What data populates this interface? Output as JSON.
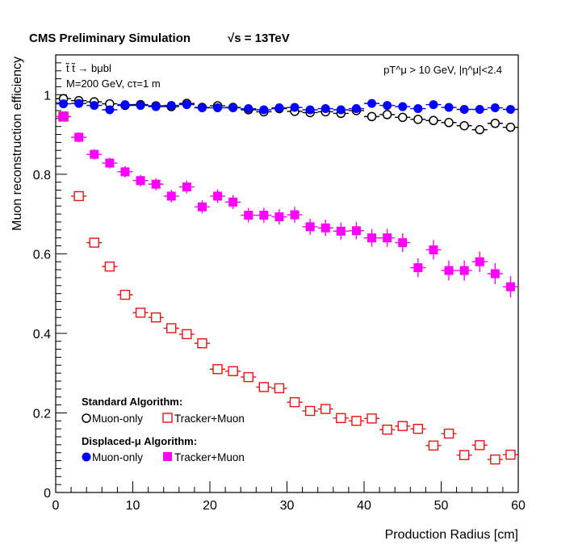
{
  "chart_data": {
    "type": "scatter",
    "title": "CMS Preliminary Simulation",
    "title_energy": "√s = 13TeV",
    "xlabel": "Production Radius [cm]",
    "ylabel": "Muon reconstruction efficiency",
    "xlim": [
      0,
      60
    ],
    "ylim": [
      0,
      1.1
    ],
    "xticks": [
      0,
      10,
      20,
      30,
      40,
      50,
      60
    ],
    "yticks": [
      0,
      0.2,
      0.4,
      0.6,
      0.8,
      1
    ],
    "ytick_labels": [
      "0",
      "0.2",
      "0.4",
      "0.6",
      "0.8",
      "1"
    ],
    "annotations": {
      "process": "t̃ t̃ → bμbl",
      "params": "M=200 GeV, cτ=1 m",
      "cuts": "pT^μ > 10 GeV, |η^μ|<2.4"
    },
    "legend": {
      "position": "bottom-left",
      "standard_header": "Standard Algorithm:",
      "displaced_header": "Displaced-μ Algorithm:",
      "muon_only": "Muon-only",
      "tracker_muon": "Tracker+Muon"
    },
    "x": [
      1,
      3,
      5,
      7,
      9,
      11,
      13,
      15,
      17,
      19,
      21,
      23,
      25,
      27,
      29,
      31,
      33,
      35,
      37,
      39,
      41,
      43,
      45,
      47,
      49,
      51,
      53,
      55,
      57,
      59
    ],
    "x_bin_halfwidth": 1,
    "series": [
      {
        "name": "Standard Muon-only",
        "marker": "open-circle",
        "color": "#000000",
        "values": [
          0.99,
          0.985,
          0.982,
          0.977,
          0.973,
          0.975,
          0.972,
          0.97,
          0.978,
          0.968,
          0.972,
          0.968,
          0.962,
          0.957,
          0.965,
          0.958,
          0.955,
          0.957,
          0.953,
          0.96,
          0.945,
          0.95,
          0.943,
          0.938,
          0.935,
          0.93,
          0.922,
          0.912,
          0.928,
          0.918
        ]
      },
      {
        "name": "Displaced Muon-only",
        "marker": "filled-circle",
        "color": "#0000ff",
        "values": [
          0.977,
          0.978,
          0.973,
          0.962,
          0.975,
          0.973,
          0.97,
          0.973,
          0.975,
          0.967,
          0.967,
          0.967,
          0.965,
          0.962,
          0.967,
          0.968,
          0.962,
          0.965,
          0.962,
          0.965,
          0.978,
          0.973,
          0.97,
          0.965,
          0.975,
          0.968,
          0.963,
          0.963,
          0.967,
          0.963
        ]
      },
      {
        "name": "Standard Tracker+Muon",
        "marker": "open-square",
        "color": "#ee1111",
        "values": [
          0.945,
          0.745,
          0.628,
          0.568,
          0.497,
          0.452,
          0.44,
          0.413,
          0.398,
          0.375,
          0.31,
          0.305,
          0.29,
          0.265,
          0.262,
          0.227,
          0.205,
          0.21,
          0.187,
          0.18,
          0.186,
          0.158,
          0.167,
          0.16,
          0.118,
          0.148,
          0.094,
          0.119,
          0.083,
          0.095
        ]
      },
      {
        "name": "Displaced Tracker+Muon",
        "marker": "filled-square",
        "color": "#ff00ff",
        "values": [
          0.945,
          0.893,
          0.85,
          0.828,
          0.806,
          0.784,
          0.775,
          0.745,
          0.768,
          0.718,
          0.745,
          0.73,
          0.697,
          0.697,
          0.693,
          0.698,
          0.668,
          0.665,
          0.657,
          0.658,
          0.64,
          0.64,
          0.628,
          0.565,
          0.61,
          0.558,
          0.558,
          0.58,
          0.55,
          0.517
        ]
      }
    ]
  }
}
